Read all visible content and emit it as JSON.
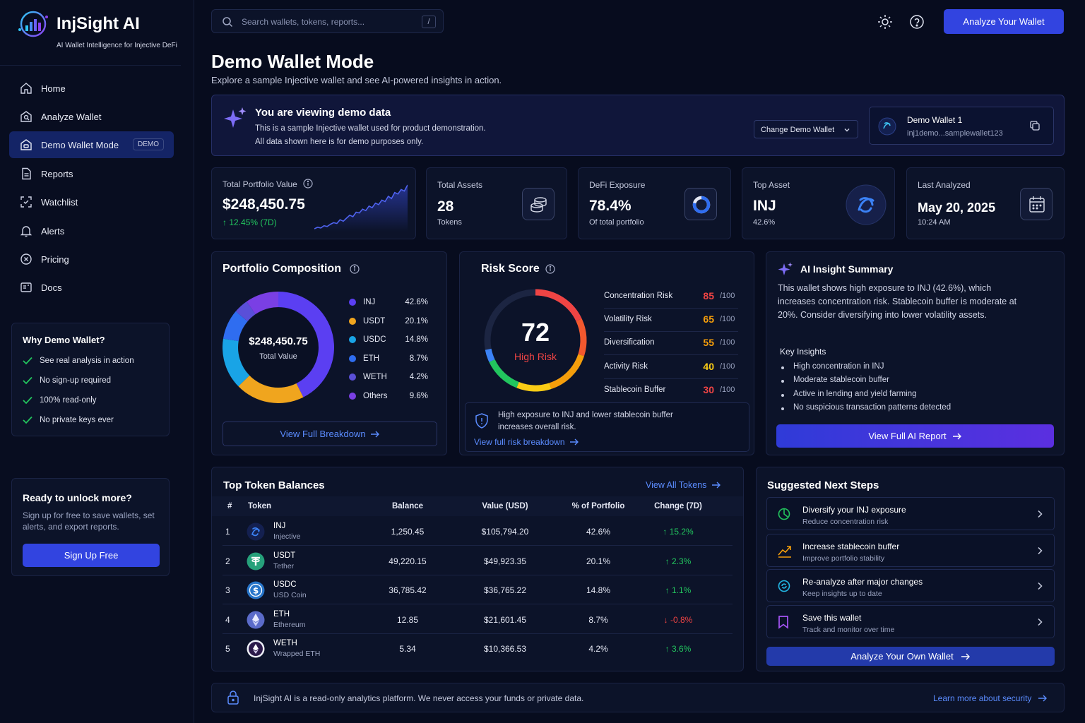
{
  "app": {
    "name": "InjSight AI",
    "tagline": "AI Wallet Intelligence for Injective DeFi"
  },
  "nav": [
    {
      "label": "Home",
      "icon": "home-icon"
    },
    {
      "label": "Analyze Wallet",
      "icon": "analyze-icon"
    },
    {
      "label": "Demo Wallet Mode",
      "icon": "wallet-icon",
      "badge": "DEMO",
      "active": true
    },
    {
      "label": "Reports",
      "icon": "reports-icon"
    },
    {
      "label": "Watchlist",
      "icon": "watchlist-icon"
    },
    {
      "label": "Alerts",
      "icon": "bell-icon"
    },
    {
      "label": "Pricing",
      "icon": "pricing-icon"
    },
    {
      "label": "Docs",
      "icon": "docs-icon"
    }
  ],
  "why_demo": {
    "title": "Why Demo Wallet?",
    "items": [
      "See real analysis in action",
      "No sign-up required",
      "100% read-only",
      "No private keys ever"
    ]
  },
  "unlock": {
    "title": "Ready to unlock more?",
    "text": "Sign up for free to save wallets, set alerts, and export reports.",
    "button": "Sign Up Free"
  },
  "header": {
    "search_placeholder": "Search wallets, tokens, reports...",
    "search_shortcut": "/",
    "cta": "Analyze Your Wallet"
  },
  "page": {
    "title": "Demo Wallet Mode",
    "subtitle": "Explore a sample Injective wallet and see AI-powered insights in action."
  },
  "demo_banner": {
    "title": "You are viewing demo data",
    "line1": "This is a sample Injective wallet used for product demonstration.",
    "line2": "All data shown here is for demo purposes only.",
    "change_label": "Change Demo Wallet",
    "wallet_name": "Demo Wallet 1",
    "wallet_address": "inj1demo...samplewallet123"
  },
  "stats": {
    "portfolio": {
      "label": "Total Portfolio Value",
      "value": "$248,450.75",
      "change": "↑ 12.45% (7D)",
      "spark": [
        12,
        14,
        13,
        16,
        15,
        18,
        20,
        19,
        24,
        22,
        26,
        30,
        28,
        34,
        33,
        38,
        36,
        42,
        40,
        46,
        44,
        50,
        48,
        55,
        52,
        60,
        58,
        64,
        62,
        70
      ]
    },
    "assets": {
      "label": "Total Assets",
      "value": "28",
      "sub": "Tokens"
    },
    "defi": {
      "label": "DeFi Exposure",
      "value": "78.4%",
      "sub": "Of total portfolio",
      "fraction": 0.784
    },
    "top": {
      "label": "Top Asset",
      "value": "INJ",
      "sub": "42.6%"
    },
    "last": {
      "label": "Last Analyzed",
      "value": "May 20, 2025",
      "sub": "10:24 AM"
    }
  },
  "composition": {
    "title": "Portfolio Composition",
    "center_value": "$248,450.75",
    "center_label": "Total Value",
    "items": [
      {
        "name": "INJ",
        "pct": "42.6%",
        "value": 42.6,
        "color": "#5b3ff2"
      },
      {
        "name": "USDT",
        "pct": "20.1%",
        "value": 20.1,
        "color": "#f0a51e"
      },
      {
        "name": "USDC",
        "pct": "14.8%",
        "value": 14.8,
        "color": "#19a4e6"
      },
      {
        "name": "ETH",
        "pct": "8.7%",
        "value": 8.7,
        "color": "#2f6df0"
      },
      {
        "name": "WETH",
        "pct": "4.2%",
        "value": 4.2,
        "color": "#5a4fd8"
      },
      {
        "name": "Others",
        "pct": "9.6%",
        "value": 9.6,
        "color": "#7a3fe4"
      }
    ],
    "link": "View Full Breakdown"
  },
  "risk": {
    "title": "Risk Score",
    "score": "72",
    "score_value": 72,
    "level": "High Risk",
    "factors": [
      {
        "name": "Concentration Risk",
        "score": "85",
        "max": "/100",
        "color": "#ef4444"
      },
      {
        "name": "Volatility Risk",
        "score": "65",
        "max": "/100",
        "color": "#f59e0b"
      },
      {
        "name": "Diversification",
        "score": "55",
        "max": "/100",
        "color": "#f59e0b"
      },
      {
        "name": "Activity Risk",
        "score": "40",
        "max": "/100",
        "color": "#facc15"
      },
      {
        "name": "Stablecoin Buffer",
        "score": "30",
        "max": "/100",
        "color": "#ef4444"
      }
    ],
    "note": "High exposure to INJ and lower stablecoin buffer increases overall risk.",
    "link": "View full risk breakdown"
  },
  "ai_summary": {
    "title": "AI Insight Summary",
    "text": "This wallet shows high exposure to INJ (42.6%), which increases concentration risk. Stablecoin buffer is moderate at 20%. Consider diversifying into lower volatility assets.",
    "key_title": "Key Insights",
    "insights": [
      "High concentration in INJ",
      "Moderate stablecoin buffer",
      "Active in lending and yield farming",
      "No suspicious transaction patterns detected"
    ],
    "button": "View Full AI Report"
  },
  "tokens": {
    "title": "Top Token Balances",
    "link": "View All Tokens",
    "headers": [
      "#",
      "Token",
      "Balance",
      "Value (USD)",
      "% of Portfolio",
      "Change (7D)"
    ],
    "rows": [
      {
        "rank": "1",
        "symbol": "INJ",
        "name": "Injective",
        "balance": "1,250.45",
        "value": "$105,794.20",
        "pct": "42.6%",
        "change": "↑ 15.2%",
        "up": true
      },
      {
        "rank": "2",
        "symbol": "USDT",
        "name": "Tether",
        "balance": "49,220.15",
        "value": "$49,923.35",
        "pct": "20.1%",
        "change": "↑ 2.3%",
        "up": true
      },
      {
        "rank": "3",
        "symbol": "USDC",
        "name": "USD Coin",
        "balance": "36,785.42",
        "value": "$36,765.22",
        "pct": "14.8%",
        "change": "↑ 1.1%",
        "up": true
      },
      {
        "rank": "4",
        "symbol": "ETH",
        "name": "Ethereum",
        "balance": "12.85",
        "value": "$21,601.45",
        "pct": "8.7%",
        "change": "↓ -0.8%",
        "up": false
      },
      {
        "rank": "5",
        "symbol": "WETH",
        "name": "Wrapped ETH",
        "balance": "5.34",
        "value": "$10,366.53",
        "pct": "4.2%",
        "change": "↑ 3.6%",
        "up": true
      }
    ]
  },
  "next_steps": {
    "title": "Suggested Next Steps",
    "items": [
      {
        "title": "Diversify your INJ exposure",
        "sub": "Reduce concentration risk",
        "icon": "diversify-icon",
        "color": "#22c55e"
      },
      {
        "title": "Increase stablecoin buffer",
        "sub": "Improve portfolio stability",
        "icon": "growth-icon",
        "color": "#f59e0b"
      },
      {
        "title": "Re-analyze after major changes",
        "sub": "Keep insights up to date",
        "icon": "refresh-icon",
        "color": "#22b8e6"
      },
      {
        "title": "Save this wallet",
        "sub": "Track and monitor over time",
        "icon": "bookmark-icon",
        "color": "#a855f7"
      }
    ],
    "button": "Analyze Your Own Wallet"
  },
  "footer": {
    "text": "InjSight AI is a read-only analytics platform. We never access your funds or private data.",
    "link": "Learn more about security"
  }
}
